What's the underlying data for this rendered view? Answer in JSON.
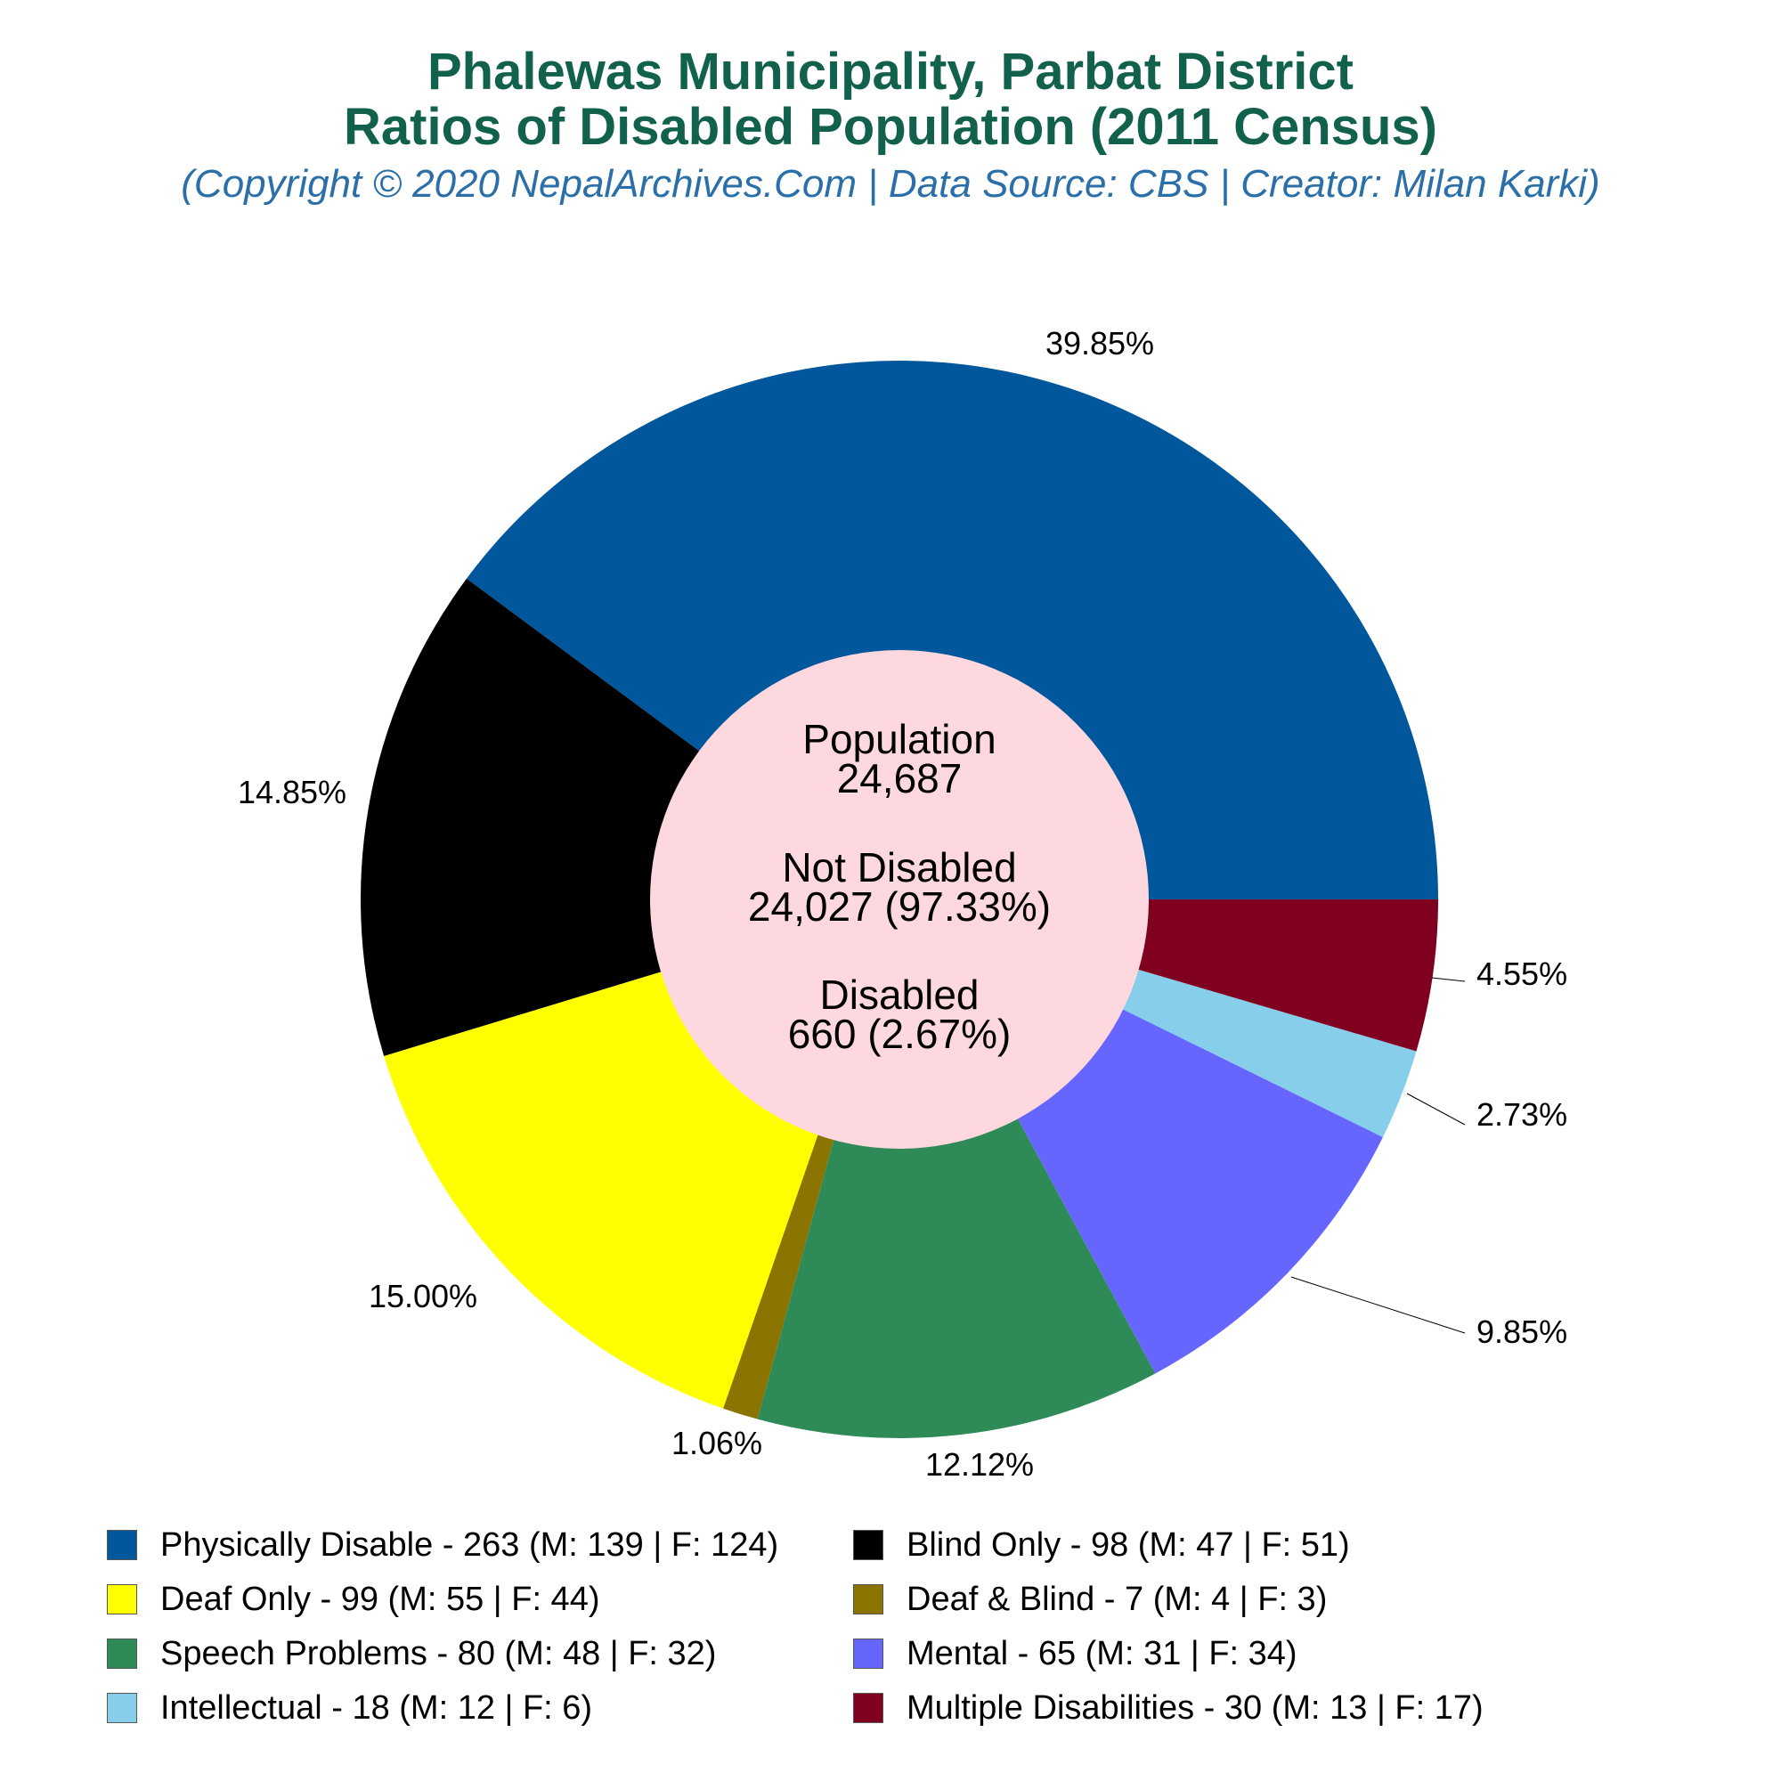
{
  "chart_data": {
    "type": "pie",
    "title": "Phalewas Municipality, Parbat District",
    "title2": "Ratios of Disabled Population (2011 Census)",
    "subtitle": "(Copyright © 2020 NepalArchives.Com | Data Source: CBS | Creator: Milan Karki)",
    "center": {
      "population_label": "Population",
      "population_value": "24,687",
      "not_disabled_label": "Not Disabled",
      "not_disabled_value": "24,027 (97.33%)",
      "disabled_label": "Disabled",
      "disabled_value": "660 (2.67%)"
    },
    "center_color": "#fdd8df",
    "slices": [
      {
        "label": "Physically Disable",
        "value": 263,
        "male": 139,
        "female": 124,
        "percent": "39.85%",
        "color": "#01579b",
        "legend": "Physically Disable - 263 (M: 139 | F: 124)"
      },
      {
        "label": "Blind Only",
        "value": 98,
        "male": 47,
        "female": 51,
        "percent": "14.85%",
        "color": "#000000",
        "legend": "Blind Only - 98 (M: 47 | F: 51)"
      },
      {
        "label": "Deaf Only",
        "value": 99,
        "male": 55,
        "female": 44,
        "percent": "15.00%",
        "color": "#ffff00",
        "legend": "Deaf Only - 99 (M: 55 | F: 44)"
      },
      {
        "label": "Deaf & Blind",
        "value": 7,
        "male": 4,
        "female": 3,
        "percent": "1.06%",
        "color": "#8b7500",
        "legend": "Deaf & Blind - 7 (M: 4 | F: 3)"
      },
      {
        "label": "Speech Problems",
        "value": 80,
        "male": 48,
        "female": 32,
        "percent": "12.12%",
        "color": "#2e8b57",
        "legend": "Speech Problems - 80 (M: 48 | F: 32)"
      },
      {
        "label": "Mental",
        "value": 65,
        "male": 31,
        "female": 34,
        "percent": "9.85%",
        "color": "#6666ff",
        "legend": "Mental - 65 (M: 31 | F: 34)"
      },
      {
        "label": "Intellectual",
        "value": 18,
        "male": 12,
        "female": 6,
        "percent": "2.73%",
        "color": "#87ceeb",
        "legend": "Intellectual - 18 (M: 12 | F: 6)"
      },
      {
        "label": "Multiple Disabilities",
        "value": 30,
        "male": 13,
        "female": 17,
        "percent": "4.55%",
        "color": "#800020",
        "legend": "Multiple Disabilities - 30 (M: 13 | F: 17)"
      }
    ]
  }
}
